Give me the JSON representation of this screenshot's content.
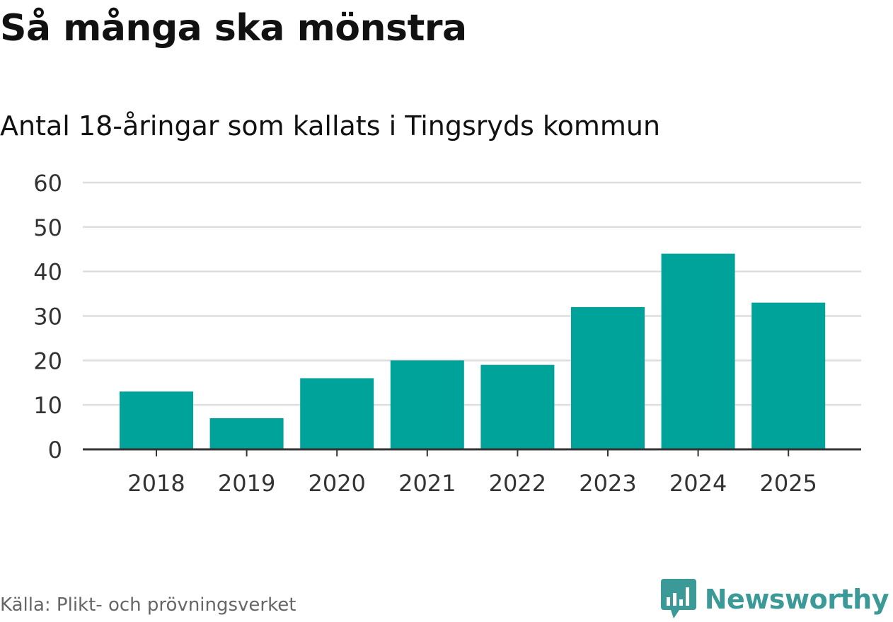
{
  "header": {
    "title": "Så många ska mönstra",
    "subtitle": "Antal 18-åringar som kallats i Tingsryds kommun"
  },
  "footer": {
    "source": "Källa: Plikt- och prövningsverket",
    "brand_name": "Newsworthy",
    "brand_icon": "newsworthy-logo-icon"
  },
  "colors": {
    "bar": "#00a39a",
    "grid": "#dddddd",
    "axis": "#333333",
    "tick_text": "#333333",
    "brand": "#3b9a98"
  },
  "chart_data": {
    "type": "bar",
    "categories": [
      "2018",
      "2019",
      "2020",
      "2021",
      "2022",
      "2023",
      "2024",
      "2025"
    ],
    "values": [
      13,
      7,
      16,
      20,
      19,
      32,
      44,
      33
    ],
    "y_ticks": [
      0,
      10,
      20,
      30,
      40,
      50,
      60
    ],
    "ylim": [
      0,
      60
    ],
    "xlabel": "",
    "ylabel": "",
    "grid": true,
    "legend": "none"
  }
}
